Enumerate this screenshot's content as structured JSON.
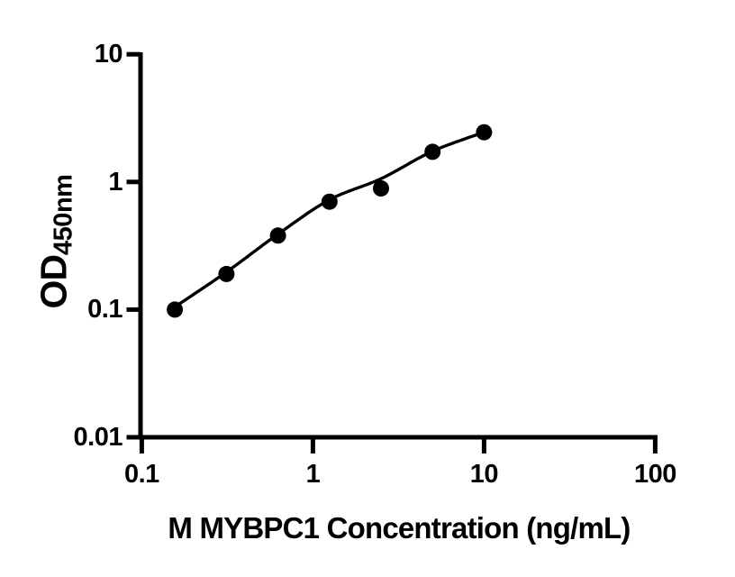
{
  "figure": {
    "background_color": "#ffffff",
    "foreground_color": "#000000"
  },
  "chart_data": {
    "type": "scatter",
    "title": "",
    "xlabel": "M MYBPC1 Concentration (ng/mL)",
    "ylabel_main": "OD",
    "ylabel_sub": "450nm",
    "x_scale": "log",
    "y_scale": "log",
    "xlim": [
      0.1,
      100
    ],
    "ylim": [
      0.01,
      10
    ],
    "x_ticks": [
      0.1,
      1,
      10,
      100
    ],
    "x_tick_labels": [
      "0.1",
      "1",
      "10",
      "100"
    ],
    "y_ticks": [
      10,
      1,
      0.1,
      0.01
    ],
    "y_tick_labels": [
      "10",
      "1",
      "0.1",
      "0.01"
    ],
    "grid": false,
    "legend": null,
    "series": [
      {
        "name": "standard-data-points",
        "type": "scatter",
        "marker": "filled-circle",
        "color": "#000000",
        "x": [
          0.156,
          0.3125,
          0.625,
          1.25,
          2.5,
          5,
          10
        ],
        "y": [
          0.1,
          0.19,
          0.38,
          0.7,
          0.89,
          1.72,
          2.45
        ]
      },
      {
        "name": "fit-curve",
        "type": "line",
        "color": "#000000",
        "x": [
          0.156,
          0.3125,
          0.625,
          1.25,
          2.5,
          5,
          10
        ],
        "y": [
          0.105,
          0.197,
          0.39,
          0.725,
          1.06,
          1.74,
          2.45
        ]
      }
    ]
  }
}
